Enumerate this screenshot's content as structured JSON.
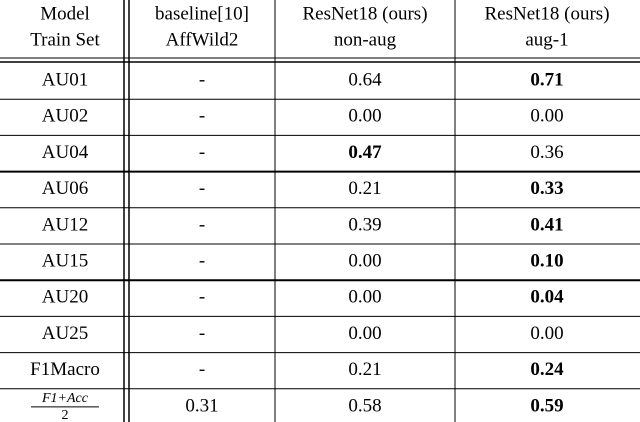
{
  "table": {
    "header": [
      [
        "Model",
        "Train Set"
      ],
      [
        "baseline[10]",
        "AffWild2"
      ],
      [
        "ResNet18 (ours)",
        "non-aug"
      ],
      [
        "ResNet18 (ours)",
        "aug-1"
      ]
    ],
    "rows": [
      {
        "cells": [
          "AU01",
          "-",
          "0.64",
          "0.71"
        ],
        "bold": [
          3
        ]
      },
      {
        "cells": [
          "AU02",
          "-",
          "0.00",
          "0.00"
        ],
        "bold": []
      },
      {
        "cells": [
          "AU04",
          "-",
          "0.47",
          "0.36"
        ],
        "bold": [
          2
        ]
      },
      {
        "cells": [
          "AU06",
          "-",
          "0.21",
          "0.33"
        ],
        "bold": [
          3
        ]
      },
      {
        "cells": [
          "AU12",
          "-",
          "0.39",
          "0.41"
        ],
        "bold": [
          3
        ]
      },
      {
        "cells": [
          "AU15",
          "-",
          "0.00",
          "0.10"
        ],
        "bold": [
          3
        ]
      },
      {
        "cells": [
          "AU20",
          "-",
          "0.00",
          "0.04"
        ],
        "bold": [
          3
        ]
      },
      {
        "cells": [
          "AU25",
          "-",
          "0.00",
          "0.00"
        ],
        "bold": []
      },
      {
        "cells": [
          "F1Macro",
          "-",
          "0.21",
          "0.24"
        ],
        "bold": [
          3
        ]
      },
      {
        "cells": [
          {
            "numerator": "F1+Acc",
            "denominator": "2"
          },
          "0.31",
          "0.58",
          "0.59"
        ],
        "bold": [
          3
        ]
      }
    ]
  }
}
